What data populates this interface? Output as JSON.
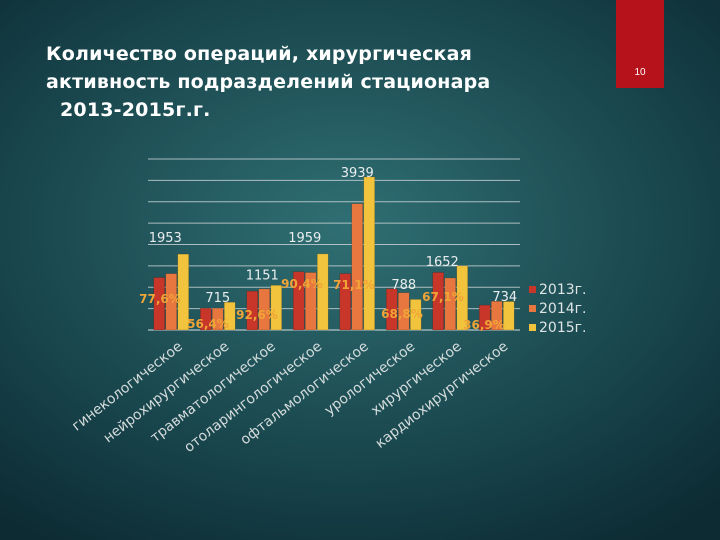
{
  "slide": {
    "title_lines": [
      "Количество операций, хирургическая",
      "активность подразделений стационара",
      "2013-2015г.г."
    ],
    "page_number": "10"
  },
  "colors": {
    "accent_tab": "#b5121b",
    "series": [
      "#c8362a",
      "#e7773f",
      "#f2c33c"
    ],
    "label_orange": "#f0a437",
    "label_light": "#e9edee",
    "grid": "#d9dfe0"
  },
  "chart_data": {
    "type": "bar",
    "title": "",
    "xlabel": "",
    "ylabel": "",
    "ylim": [
      0,
      4400
    ],
    "grid": true,
    "legend_position": "right",
    "categories": [
      "гинекологическое",
      "нейрохирургическое",
      "травматологическое",
      "отоларингологическое",
      "офтальмологическое",
      "урологическое",
      "хирургическое",
      "кардиохирургическое"
    ],
    "series": [
      {
        "name": "2013г.",
        "values": [
          1350,
          560,
          1000,
          1500,
          1450,
          1060,
          1480,
          640
        ]
      },
      {
        "name": "2014г.",
        "values": [
          1450,
          560,
          1060,
          1480,
          3250,
          960,
          1340,
          740
        ]
      },
      {
        "name": "2015г.",
        "values": [
          1953,
          715,
          1151,
          1959,
          3939,
          788,
          1652,
          734
        ]
      }
    ],
    "data_labels": [
      {
        "category": 0,
        "value": "1953"
      },
      {
        "category": 1,
        "value": "715"
      },
      {
        "category": 2,
        "value": "1151"
      },
      {
        "category": 3,
        "value": "1959"
      },
      {
        "category": 4,
        "value": "3939"
      },
      {
        "category": 5,
        "value": "788"
      },
      {
        "category": 6,
        "value": "1652"
      },
      {
        "category": 7,
        "value": "734"
      }
    ],
    "activity_labels": [
      {
        "category": 0,
        "value": "77,6%"
      },
      {
        "category": 1,
        "value": "56,4%"
      },
      {
        "category": 2,
        "value": "92,6%"
      },
      {
        "category": 3,
        "value": "90,4%"
      },
      {
        "category": 4,
        "value": "71,1%"
      },
      {
        "category": 5,
        "value": "68,8%"
      },
      {
        "category": 6,
        "value": "67,1%"
      },
      {
        "category": 7,
        "value": "36,9%"
      }
    ]
  }
}
